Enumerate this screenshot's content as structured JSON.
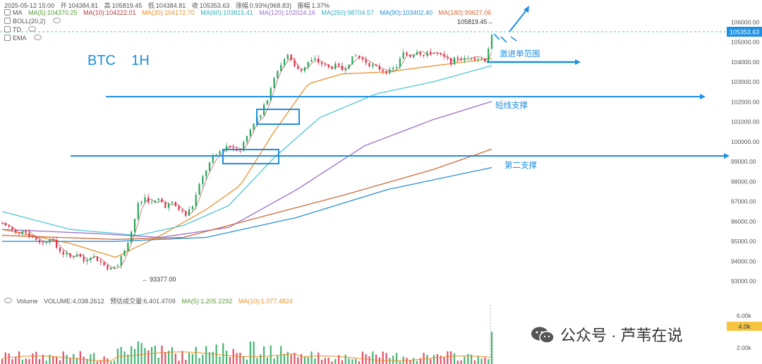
{
  "header": {
    "datetime": "2025-05-12 15:00",
    "open_label": "开",
    "open": "104384.81",
    "high_label": "高",
    "high": "105819.45",
    "low_label": "低",
    "low": "104384.81",
    "close_label": "收",
    "close": "105353.63",
    "change_label": "涨幅",
    "change": "0.93%(968.83)",
    "amp_label": "振幅",
    "amp": "1.37%",
    "ma_title": "MA",
    "ma_items": [
      {
        "text": "MA(5):104370.25",
        "color": "#5a9b3a"
      },
      {
        "text": "MA(10):104222.01",
        "color": "#b23b3b"
      },
      {
        "text": "MA(30):104172.70",
        "color": "#e8902e"
      },
      {
        "text": "MA(60):103815.41",
        "color": "#4fc6d8"
      },
      {
        "text": "MA(120):102024.16",
        "color": "#9b6fc9"
      },
      {
        "text": "MA(250):98704.57",
        "color": "#4ab3c9"
      },
      {
        "text": "MA(90):103402.40",
        "color": "#2a8fd6"
      },
      {
        "text": "MA(180):99627.06",
        "color": "#d06a3a"
      }
    ],
    "indicators": [
      "BOLL(20,2)",
      "TD",
      "EMA"
    ]
  },
  "title": "BTC    1H",
  "annotations": {
    "high_marker": "105819.45",
    "low_marker": "93377.00",
    "zone_label": "激进单范围",
    "support1_label": "短线支撑",
    "support2_label": "第二支撑",
    "current_price": "105353.63"
  },
  "volume_header": {
    "label": "Volume",
    "volume": "VOLUME:4,038.2612",
    "est": "预估成交量:6,401.4709",
    "ma5": "MA(5):1,205.2292",
    "ma10": "MA(10):1,077.4824",
    "colors": {
      "ma5": "#5a9b3a",
      "ma10": "#e8902e"
    }
  },
  "watermark": "公众号 · 芦苇在说",
  "colors": {
    "up": "#26a65b",
    "down": "#e0304a",
    "annotation_blue": "#1e8fe0",
    "price_tag": "#1e8fe0",
    "vol_tag": "#f5c542"
  },
  "chart_data": {
    "type": "candlestick",
    "symbol": "BTC",
    "timeframe": "1H",
    "y_ticks": [
      106000,
      105000,
      104000,
      103000,
      102000,
      101000,
      100000,
      99000,
      98000,
      97000,
      96000,
      95000,
      94000,
      93000
    ],
    "y_tick_labels": [
      "106000.00",
      "105000.00",
      "104000.00",
      "103000.00",
      "102000.00",
      "101000.00",
      "100000.00",
      "99000.00",
      "98000.00",
      "97000.00",
      "96000.00",
      "95000.00",
      "94000.00",
      "93000.00"
    ],
    "ylim": [
      92600,
      106400
    ],
    "volume_ticks": [
      "6.00k",
      "2.00k"
    ],
    "volume_tick_values": [
      6000,
      2000
    ],
    "volume_tag": "4.0k",
    "volume_ylim": [
      0,
      7000
    ],
    "high": 105819.45,
    "low": 93377.0,
    "last": 105353.63,
    "support_lines": [
      {
        "name": "激进单范围",
        "value": 103950
      },
      {
        "name": "短线支撑",
        "value": 102150
      },
      {
        "name": "第二支撑",
        "value": 99300
      }
    ],
    "price_path": [
      [
        0,
        95900
      ],
      [
        6,
        95700
      ],
      [
        12,
        95400
      ],
      [
        18,
        95600
      ],
      [
        24,
        95300
      ],
      [
        30,
        95100
      ],
      [
        36,
        94900
      ],
      [
        42,
        95200
      ],
      [
        48,
        94700
      ],
      [
        54,
        94400
      ],
      [
        60,
        94200
      ],
      [
        66,
        94400
      ],
      [
        72,
        94000
      ],
      [
        78,
        94300
      ],
      [
        84,
        94100
      ],
      [
        90,
        93800
      ],
      [
        96,
        93600
      ],
      [
        102,
        93800
      ],
      [
        108,
        94600
      ],
      [
        114,
        95500
      ],
      [
        120,
        96800
      ],
      [
        126,
        97200
      ],
      [
        132,
        96900
      ],
      [
        138,
        97100
      ],
      [
        144,
        96800
      ],
      [
        150,
        96900
      ],
      [
        156,
        96600
      ],
      [
        162,
        96300
      ],
      [
        168,
        96800
      ],
      [
        174,
        97800
      ],
      [
        180,
        98600
      ],
      [
        186,
        99200
      ],
      [
        192,
        99500
      ],
      [
        198,
        99800
      ],
      [
        204,
        99700
      ],
      [
        210,
        99600
      ],
      [
        216,
        100300
      ],
      [
        222,
        101000
      ],
      [
        228,
        101300
      ],
      [
        234,
        102200
      ],
      [
        240,
        103300
      ],
      [
        246,
        103900
      ],
      [
        252,
        104300
      ],
      [
        258,
        103700
      ],
      [
        264,
        103600
      ],
      [
        270,
        104000
      ],
      [
        276,
        104100
      ],
      [
        282,
        103900
      ],
      [
        288,
        103700
      ],
      [
        294,
        103800
      ],
      [
        300,
        103600
      ],
      [
        306,
        104000
      ],
      [
        312,
        104300
      ],
      [
        318,
        104100
      ],
      [
        324,
        103900
      ],
      [
        330,
        103700
      ],
      [
        336,
        103600
      ],
      [
        342,
        103500
      ],
      [
        348,
        103800
      ],
      [
        354,
        104400
      ],
      [
        360,
        104300
      ],
      [
        366,
        104600
      ],
      [
        372,
        104300
      ],
      [
        378,
        104500
      ],
      [
        384,
        104400
      ],
      [
        390,
        104200
      ],
      [
        396,
        104000
      ],
      [
        402,
        104200
      ],
      [
        408,
        104100
      ],
      [
        414,
        104300
      ],
      [
        420,
        104200
      ],
      [
        426,
        104100
      ],
      [
        432,
        105353
      ]
    ],
    "ma_lines": [
      {
        "name": "MA(30)",
        "color": "#e8902e",
        "points": [
          [
            0,
            95600
          ],
          [
            60,
            94900
          ],
          [
            100,
            94200
          ],
          [
            140,
            95300
          ],
          [
            180,
            96600
          ],
          [
            210,
            97800
          ],
          [
            240,
            100500
          ],
          [
            270,
            102900
          ],
          [
            300,
            103400
          ],
          [
            340,
            103500
          ],
          [
            380,
            103800
          ],
          [
            432,
            104172
          ]
        ]
      },
      {
        "name": "MA(60)",
        "color": "#4fc6d8",
        "points": [
          [
            0,
            96500
          ],
          [
            60,
            95600
          ],
          [
            120,
            95300
          ],
          [
            160,
            95800
          ],
          [
            200,
            96800
          ],
          [
            240,
            99200
          ],
          [
            280,
            101200
          ],
          [
            330,
            102400
          ],
          [
            380,
            103000
          ],
          [
            432,
            103815
          ]
        ]
      },
      {
        "name": "MA(120)",
        "color": "#9b6fc9",
        "points": [
          [
            0,
            95600
          ],
          [
            80,
            95400
          ],
          [
            140,
            95200
          ],
          [
            200,
            95700
          ],
          [
            260,
            97600
          ],
          [
            320,
            99800
          ],
          [
            380,
            101100
          ],
          [
            432,
            102024
          ]
        ]
      },
      {
        "name": "MA(180)",
        "color": "#d06a3a",
        "points": [
          [
            0,
            95300
          ],
          [
            100,
            95100
          ],
          [
            160,
            95200
          ],
          [
            220,
            96100
          ],
          [
            300,
            97300
          ],
          [
            380,
            98600
          ],
          [
            432,
            99627
          ]
        ]
      },
      {
        "name": "MA(250)",
        "color": "#2a8fd6",
        "points": [
          [
            0,
            95000
          ],
          [
            100,
            95000
          ],
          [
            180,
            95200
          ],
          [
            260,
            96200
          ],
          [
            340,
            97600
          ],
          [
            432,
            98704
          ]
        ]
      }
    ]
  }
}
